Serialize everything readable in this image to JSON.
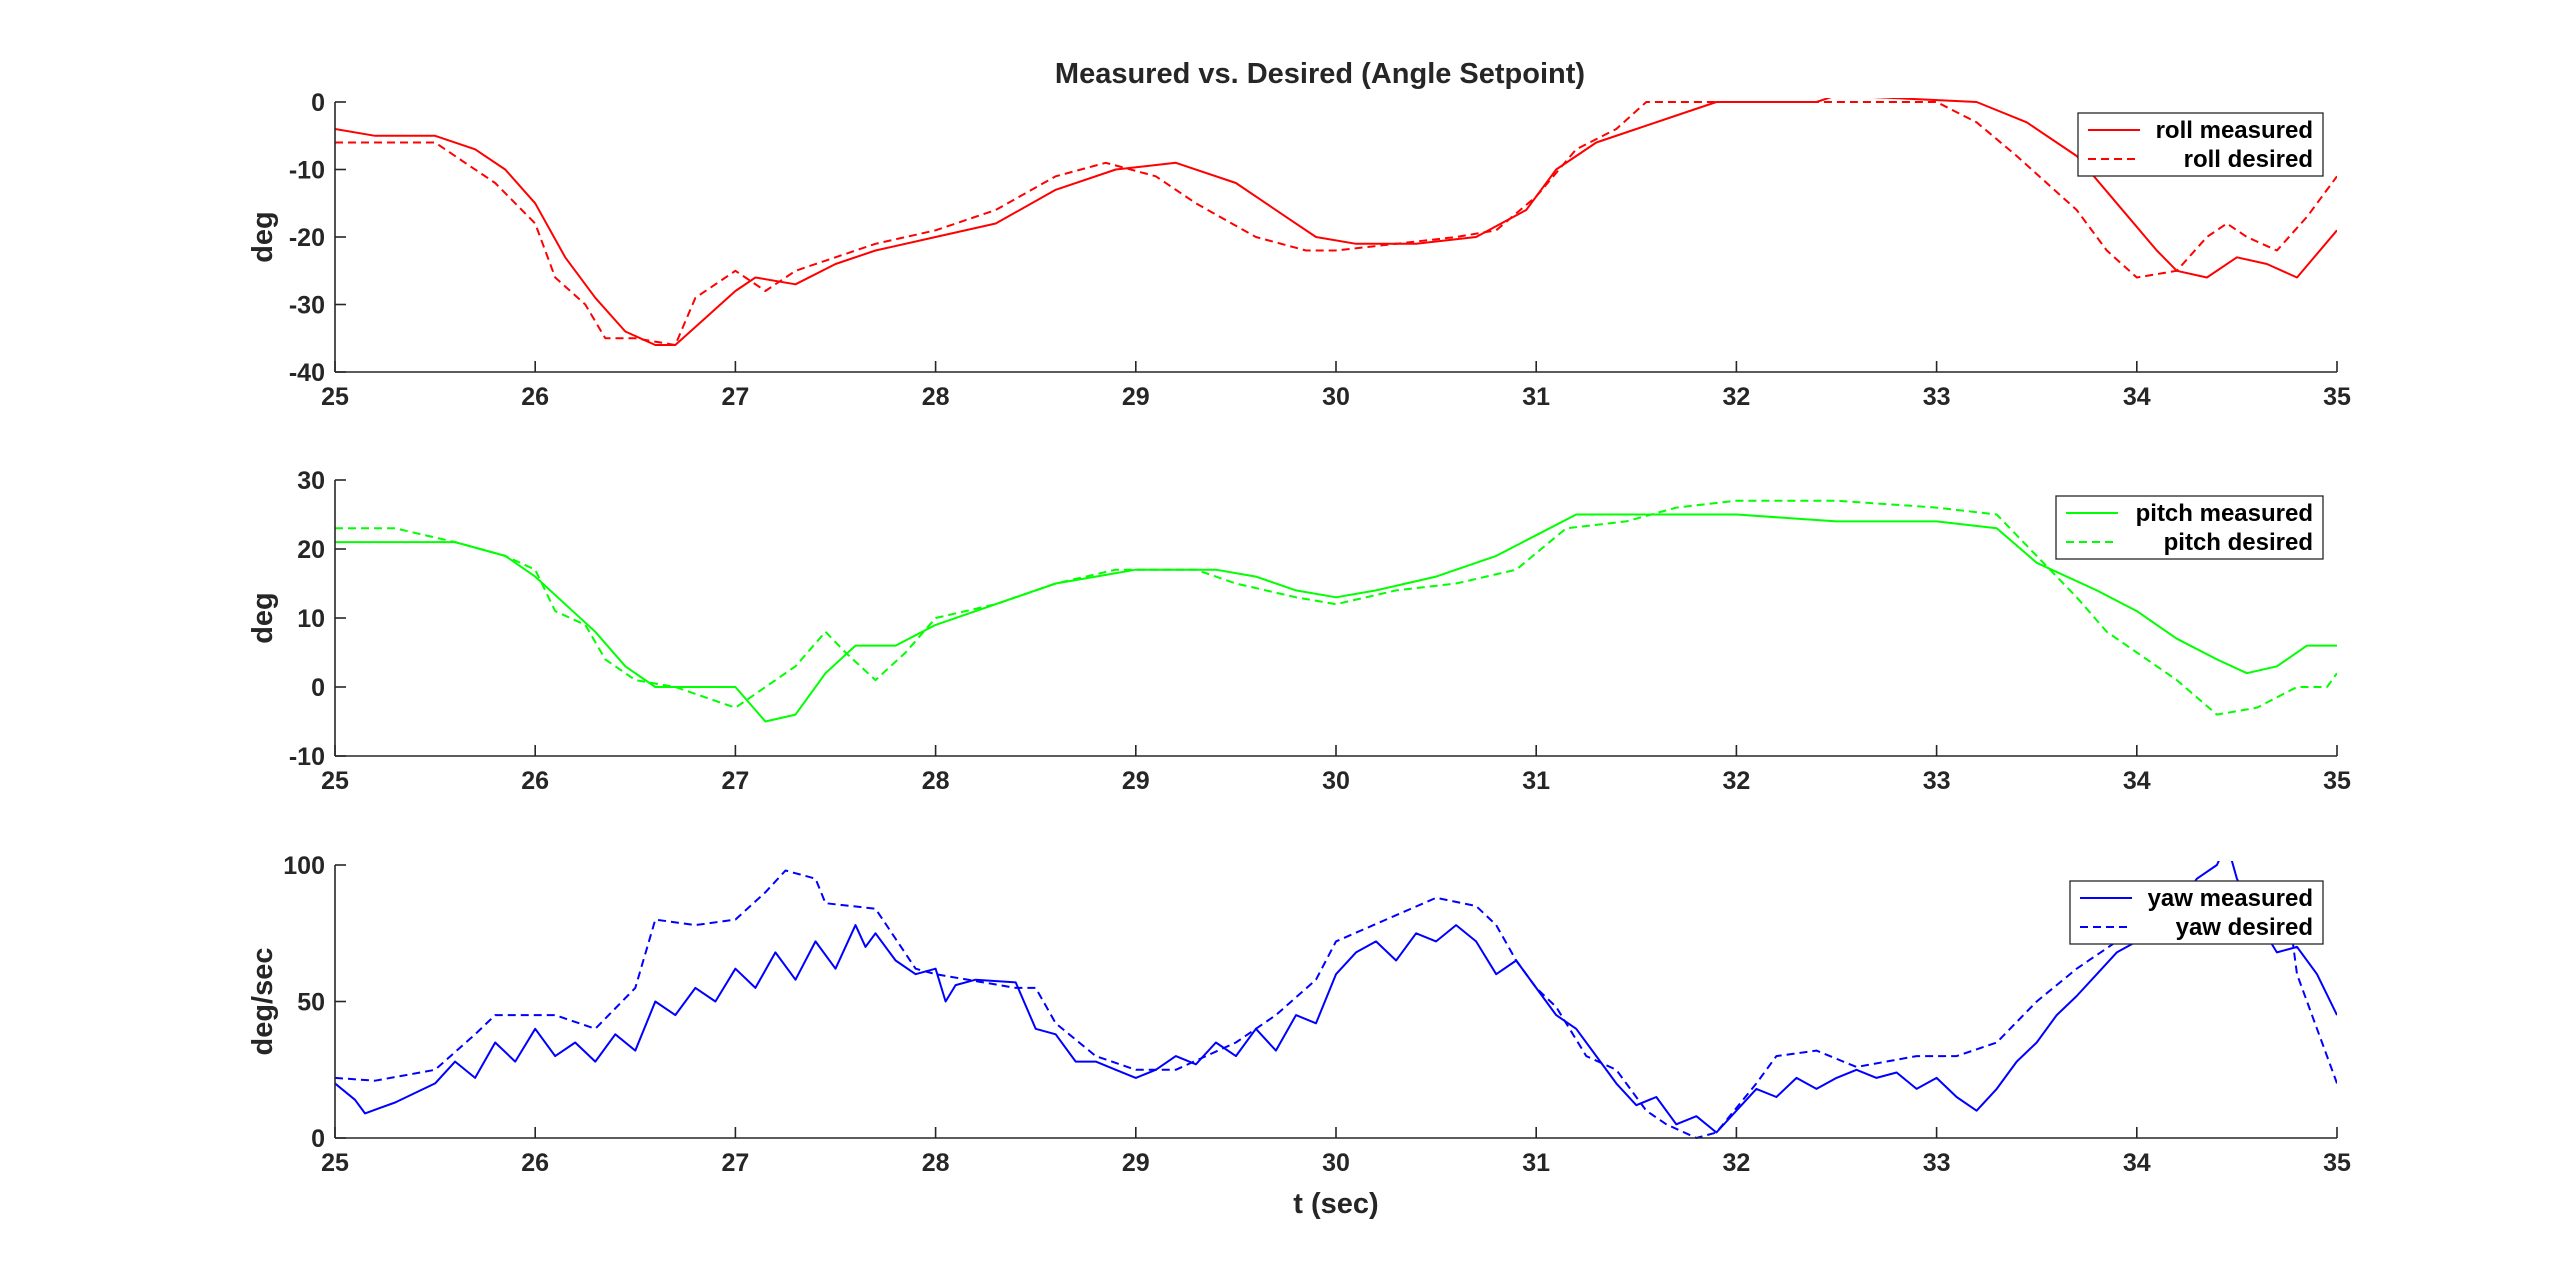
{
  "figure_title": "Measured vs. Desired (Angle Setpoint)",
  "chart_data": [
    {
      "type": "line",
      "title": "Measured vs. Desired (Angle Setpoint)",
      "xlabel": "",
      "ylabel": "deg",
      "xlim": [
        25,
        35
      ],
      "ylim": [
        -40,
        0
      ],
      "xticks": [
        "25",
        "26",
        "27",
        "28",
        "29",
        "30",
        "31",
        "32",
        "33",
        "34",
        "35"
      ],
      "yticks": [
        "-40",
        "-30",
        "-20",
        "-10",
        "0"
      ],
      "legend_position": "top-right",
      "color": "#ff0000",
      "series": [
        {
          "name": "roll measured",
          "style": "solid",
          "x": [
            25,
            25.2,
            25.4,
            25.5,
            25.7,
            25.85,
            26,
            26.15,
            26.3,
            26.45,
            26.6,
            26.7,
            26.85,
            27,
            27.1,
            27.3,
            27.5,
            27.7,
            28,
            28.3,
            28.6,
            28.9,
            29.2,
            29.5,
            29.75,
            29.9,
            30.1,
            30.4,
            30.7,
            30.95,
            31.1,
            31.3,
            31.5,
            31.7,
            31.9,
            32.4,
            32.5,
            33.2,
            33.45,
            33.7,
            33.9,
            34.1,
            34.2,
            34.35,
            34.5,
            34.65,
            34.8,
            35
          ],
          "y": [
            -4,
            -5,
            -5,
            -5,
            -7,
            -10,
            -15,
            -23,
            -29,
            -34,
            -36,
            -36,
            -32,
            -28,
            -26,
            -27,
            -24,
            -22,
            -20,
            -18,
            -13,
            -10,
            -9,
            -12,
            -17,
            -20,
            -21,
            -21,
            -20,
            -16,
            -10,
            -6,
            -4,
            -2,
            0,
            0,
            1,
            0,
            -3,
            -8,
            -15,
            -22,
            -25,
            -26,
            -23,
            -24,
            -26,
            -19
          ]
        },
        {
          "name": "roll desired",
          "style": "dashed",
          "x": [
            25,
            25.2,
            25.5,
            25.65,
            25.8,
            26,
            26.1,
            26.25,
            26.35,
            26.5,
            26.7,
            26.8,
            27,
            27.15,
            27.3,
            27.5,
            27.7,
            28,
            28.3,
            28.6,
            28.85,
            29.1,
            29.3,
            29.6,
            29.85,
            30,
            30.3,
            30.6,
            30.8,
            31,
            31.2,
            31.4,
            31.55,
            31.9,
            32.5,
            33,
            33.2,
            33.4,
            33.55,
            33.7,
            33.85,
            34,
            34.2,
            34.35,
            34.45,
            34.55,
            34.7,
            34.85,
            35
          ],
          "y": [
            -6,
            -6,
            -6,
            -9,
            -12,
            -18,
            -26,
            -30,
            -35,
            -35,
            -36,
            -29,
            -25,
            -28,
            -25,
            -23,
            -21,
            -19,
            -16,
            -11,
            -9,
            -11,
            -15,
            -20,
            -22,
            -22,
            -21,
            -20,
            -19,
            -14,
            -7,
            -4,
            0,
            0,
            0,
            0,
            -3,
            -8,
            -12,
            -16,
            -22,
            -26,
            -25,
            -20,
            -18,
            -20,
            -22,
            -17,
            -11
          ]
        }
      ]
    },
    {
      "type": "line",
      "title": "",
      "xlabel": "",
      "ylabel": "deg",
      "xlim": [
        25,
        35
      ],
      "ylim": [
        -10,
        30
      ],
      "xticks": [
        "25",
        "26",
        "27",
        "28",
        "29",
        "30",
        "31",
        "32",
        "33",
        "34",
        "35"
      ],
      "yticks": [
        "-10",
        "0",
        "10",
        "20",
        "30"
      ],
      "legend_position": "top-right",
      "color": "#00ff00",
      "series": [
        {
          "name": "pitch measured",
          "style": "solid",
          "x": [
            25,
            25.3,
            25.6,
            25.85,
            26,
            26.15,
            26.3,
            26.45,
            26.6,
            26.8,
            27,
            27.15,
            27.3,
            27.45,
            27.6,
            27.8,
            28,
            28.3,
            28.6,
            28.8,
            29,
            29.4,
            29.6,
            29.8,
            30,
            30.2,
            30.5,
            30.8,
            31,
            31.2,
            31.5,
            32,
            32.5,
            33,
            33.3,
            33.5,
            33.8,
            34,
            34.2,
            34.4,
            34.55,
            34.7,
            34.85,
            35
          ],
          "y": [
            21,
            21,
            21,
            19,
            16,
            12,
            8,
            3,
            0,
            0,
            0,
            -5,
            -4,
            2,
            6,
            6,
            9,
            12,
            15,
            16,
            17,
            17,
            16,
            14,
            13,
            14,
            16,
            19,
            22,
            25,
            25,
            25,
            24,
            24,
            23,
            18,
            14,
            11,
            7,
            4,
            2,
            3,
            6,
            6
          ]
        },
        {
          "name": "pitch desired",
          "style": "dashed",
          "x": [
            25,
            25.3,
            25.6,
            25.85,
            26,
            26.1,
            26.25,
            26.35,
            26.5,
            26.7,
            27,
            27.15,
            27.3,
            27.45,
            27.55,
            27.7,
            27.85,
            28,
            28.3,
            28.6,
            28.9,
            29.3,
            29.5,
            29.8,
            30,
            30.3,
            30.6,
            30.9,
            31.15,
            31.45,
            31.7,
            32,
            32.5,
            33,
            33.3,
            33.5,
            33.7,
            33.85,
            34,
            34.2,
            34.4,
            34.6,
            34.8,
            34.95,
            35
          ],
          "y": [
            23,
            23,
            21,
            19,
            17,
            11,
            9,
            4,
            1,
            0,
            -3,
            0,
            3,
            8,
            5,
            1,
            5,
            10,
            12,
            15,
            17,
            17,
            15,
            13,
            12,
            14,
            15,
            17,
            23,
            24,
            26,
            27,
            27,
            26,
            25,
            19,
            13,
            8,
            5,
            1,
            -4,
            -3,
            0,
            0,
            2
          ]
        }
      ]
    },
    {
      "type": "line",
      "title": "",
      "xlabel": "t (sec)",
      "ylabel": "deg/sec",
      "xlim": [
        25,
        35
      ],
      "ylim": [
        0,
        100
      ],
      "xticks": [
        "25",
        "26",
        "27",
        "28",
        "29",
        "30",
        "31",
        "32",
        "33",
        "34",
        "35"
      ],
      "yticks": [
        "0",
        "50",
        "100"
      ],
      "legend_position": "top-right",
      "color": "#0000ff",
      "series": [
        {
          "name": "yaw measured",
          "style": "solid",
          "x": [
            25,
            25.1,
            25.15,
            25.3,
            25.5,
            25.6,
            25.7,
            25.8,
            25.9,
            26,
            26.1,
            26.2,
            26.3,
            26.4,
            26.5,
            26.6,
            26.7,
            26.8,
            26.9,
            27,
            27.1,
            27.2,
            27.3,
            27.4,
            27.5,
            27.6,
            27.65,
            27.7,
            27.8,
            27.9,
            28,
            28.05,
            28.1,
            28.2,
            28.4,
            28.5,
            28.6,
            28.7,
            28.8,
            28.9,
            29,
            29.1,
            29.2,
            29.3,
            29.4,
            29.5,
            29.6,
            29.7,
            29.8,
            29.9,
            30,
            30.1,
            30.2,
            30.3,
            30.4,
            30.5,
            30.6,
            30.7,
            30.8,
            30.9,
            31,
            31.1,
            31.2,
            31.3,
            31.4,
            31.5,
            31.6,
            31.7,
            31.8,
            31.9,
            32,
            32.1,
            32.2,
            32.3,
            32.4,
            32.5,
            32.6,
            32.7,
            32.8,
            32.9,
            33,
            33.1,
            33.2,
            33.3,
            33.4,
            33.5,
            33.6,
            33.7,
            33.8,
            33.9,
            34,
            34.1,
            34.2,
            34.3,
            34.4,
            34.45,
            34.5,
            34.6,
            34.7,
            34.8,
            34.9,
            35
          ],
          "y": [
            20,
            14,
            9,
            13,
            20,
            28,
            22,
            35,
            28,
            40,
            30,
            35,
            28,
            38,
            32,
            50,
            45,
            55,
            50,
            62,
            55,
            68,
            58,
            72,
            62,
            78,
            70,
            75,
            65,
            60,
            62,
            50,
            56,
            58,
            57,
            40,
            38,
            28,
            28,
            25,
            22,
            25,
            30,
            27,
            35,
            30,
            40,
            32,
            45,
            42,
            60,
            68,
            72,
            65,
            75,
            72,
            78,
            72,
            60,
            65,
            55,
            45,
            40,
            30,
            20,
            12,
            15,
            5,
            8,
            2,
            10,
            18,
            15,
            22,
            18,
            22,
            25,
            22,
            24,
            18,
            22,
            15,
            10,
            18,
            28,
            35,
            45,
            52,
            60,
            68,
            72,
            78,
            85,
            95,
            100,
            108,
            95,
            80,
            68,
            70,
            60,
            45
          ]
        },
        {
          "name": "yaw desired",
          "style": "dashed",
          "x": [
            25,
            25.2,
            25.5,
            25.7,
            25.8,
            26.1,
            26.3,
            26.5,
            26.6,
            26.8,
            27,
            27.15,
            27.25,
            27.4,
            27.45,
            27.7,
            27.9,
            28,
            28.4,
            28.5,
            28.6,
            28.8,
            29,
            29.2,
            29.5,
            29.7,
            29.9,
            30,
            30.5,
            30.7,
            30.8,
            30.9,
            31,
            31.1,
            31.25,
            31.4,
            31.55,
            31.65,
            31.8,
            31.9,
            32.1,
            32.2,
            32.4,
            32.6,
            32.9,
            33.1,
            33.3,
            33.5,
            33.7,
            33.9,
            34,
            34.2,
            34.4,
            34.6,
            34.75,
            34.8,
            34.9,
            35
          ],
          "y": [
            22,
            21,
            25,
            38,
            45,
            45,
            40,
            55,
            80,
            78,
            80,
            90,
            98,
            95,
            86,
            84,
            62,
            60,
            55,
            55,
            42,
            30,
            25,
            25,
            35,
            45,
            58,
            72,
            88,
            85,
            78,
            65,
            55,
            48,
            30,
            25,
            10,
            5,
            0,
            2,
            20,
            30,
            32,
            26,
            30,
            30,
            35,
            50,
            62,
            72,
            78,
            80,
            85,
            90,
            88,
            60,
            40,
            20
          ]
        }
      ]
    }
  ]
}
